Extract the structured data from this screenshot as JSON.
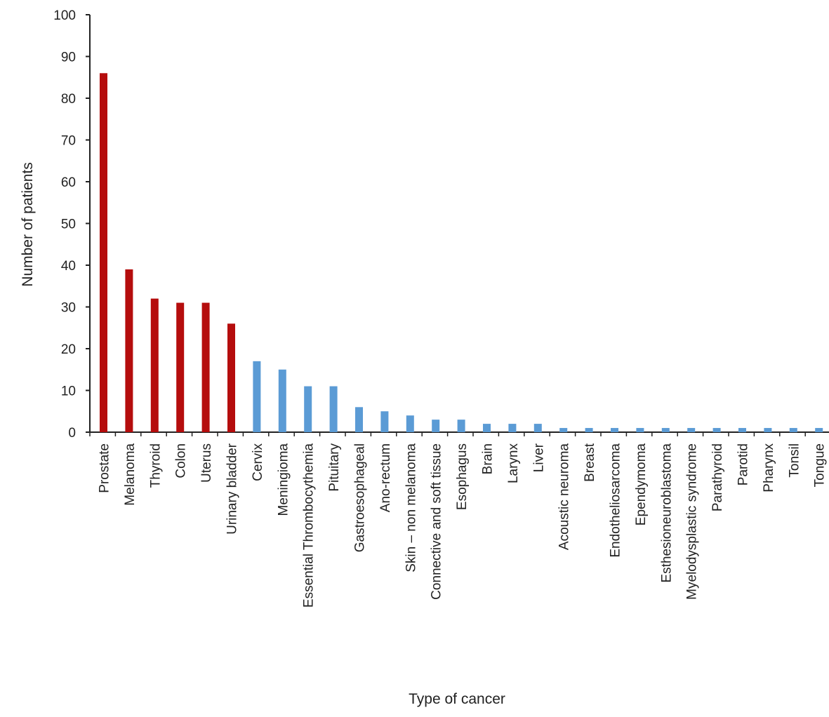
{
  "chart_data": {
    "type": "bar",
    "xlabel": "Type of cancer",
    "ylabel": "Number of patients",
    "ylim": [
      0,
      100
    ],
    "yticks": [
      0,
      10,
      20,
      30,
      40,
      50,
      60,
      70,
      80,
      90,
      100
    ],
    "grid": false,
    "legend": "none",
    "categories": [
      "Prostate",
      "Melanoma",
      "Thyroid",
      "Colon",
      "Uterus",
      "Urinary bladder",
      "Cervix",
      "Meningioma",
      "Essential Thrombocythemia",
      "Pituitary",
      "Gastroesophageal",
      "Ano-rectum",
      "Skin – non melanoma",
      "Connective and soft tissue",
      "Esophagus",
      "Brain",
      "Larynx",
      "Liver",
      "Acoustic neuroma",
      "Breast",
      "Endotheliosarcoma",
      "Ependymoma",
      "Esthesioneuroblastoma",
      "Myelodysplastic syndrome",
      "Parathyroid",
      "Parotid",
      "Pharynx",
      "Tonsil",
      "Tongue"
    ],
    "values": [
      86,
      39,
      32,
      31,
      31,
      26,
      17,
      15,
      11,
      11,
      6,
      5,
      4,
      3,
      3,
      2,
      2,
      2,
      1,
      1,
      1,
      1,
      1,
      1,
      1,
      1,
      1,
      1,
      1
    ],
    "colors": {
      "highlight": "#b50d0d",
      "default": "#5b9bd5",
      "axis": "#222222"
    },
    "highlight_count": 6
  }
}
